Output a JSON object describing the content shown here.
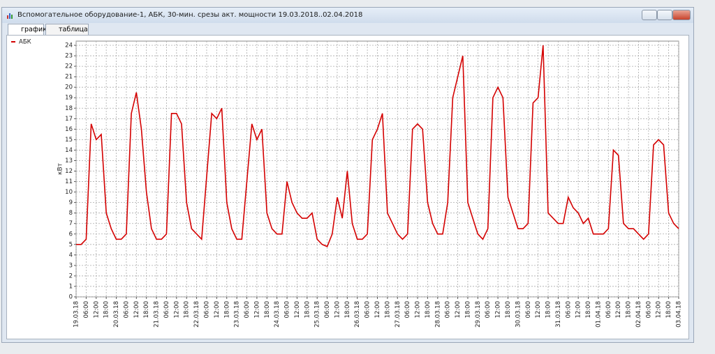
{
  "window": {
    "title": "Вспомогательное оборудование-1, АБК, 30-мин. срезы акт. мощности 19.03.2018..02.04.2018",
    "tabs": [
      "график",
      "таблица"
    ]
  },
  "chart_data": {
    "type": "line",
    "y_label": "кВт",
    "grid": true,
    "legend": "top-left",
    "xlim": [
      0,
      360
    ],
    "ylim": [
      0,
      24.4
    ],
    "yticks": [
      0,
      1,
      2,
      3,
      4,
      5,
      6,
      7,
      8,
      9,
      10,
      11,
      12,
      13,
      14,
      15,
      16,
      17,
      18,
      19,
      20,
      21,
      22,
      23,
      24
    ],
    "xticks": [
      {
        "value": 0,
        "label": "19.03.18"
      },
      {
        "value": 6,
        "label": "06:00"
      },
      {
        "value": 12,
        "label": "12:00"
      },
      {
        "value": 18,
        "label": "18:00"
      },
      {
        "value": 24,
        "label": "20.03.18"
      },
      {
        "value": 30,
        "label": "06:00"
      },
      {
        "value": 36,
        "label": "12:00"
      },
      {
        "value": 42,
        "label": "18:00"
      },
      {
        "value": 48,
        "label": "21.03.18"
      },
      {
        "value": 54,
        "label": "06:00"
      },
      {
        "value": 60,
        "label": "12:00"
      },
      {
        "value": 66,
        "label": "18:00"
      },
      {
        "value": 72,
        "label": "22.03.18"
      },
      {
        "value": 78,
        "label": "06:00"
      },
      {
        "value": 84,
        "label": "12:00"
      },
      {
        "value": 90,
        "label": "18:00"
      },
      {
        "value": 96,
        "label": "23.03.18"
      },
      {
        "value": 102,
        "label": "06:00"
      },
      {
        "value": 108,
        "label": "12:00"
      },
      {
        "value": 114,
        "label": "18:00"
      },
      {
        "value": 120,
        "label": "24.03.18"
      },
      {
        "value": 126,
        "label": "06:00"
      },
      {
        "value": 132,
        "label": "12:00"
      },
      {
        "value": 138,
        "label": "18:00"
      },
      {
        "value": 144,
        "label": "25.03.18"
      },
      {
        "value": 150,
        "label": "06:00"
      },
      {
        "value": 156,
        "label": "12:00"
      },
      {
        "value": 162,
        "label": "18:00"
      },
      {
        "value": 168,
        "label": "26.03.18"
      },
      {
        "value": 174,
        "label": "06:00"
      },
      {
        "value": 180,
        "label": "12:00"
      },
      {
        "value": 186,
        "label": "18:00"
      },
      {
        "value": 192,
        "label": "27.03.18"
      },
      {
        "value": 198,
        "label": "06:00"
      },
      {
        "value": 204,
        "label": "12:00"
      },
      {
        "value": 210,
        "label": "18:00"
      },
      {
        "value": 216,
        "label": "28.03.18"
      },
      {
        "value": 222,
        "label": "06:00"
      },
      {
        "value": 228,
        "label": "12:00"
      },
      {
        "value": 234,
        "label": "18:00"
      },
      {
        "value": 240,
        "label": "29.03.18"
      },
      {
        "value": 246,
        "label": "06:00"
      },
      {
        "value": 252,
        "label": "12:00"
      },
      {
        "value": 258,
        "label": "18:00"
      },
      {
        "value": 264,
        "label": "30.03.18"
      },
      {
        "value": 270,
        "label": "06:00"
      },
      {
        "value": 276,
        "label": "12:00"
      },
      {
        "value": 282,
        "label": "18:00"
      },
      {
        "value": 288,
        "label": "31.03.18"
      },
      {
        "value": 294,
        "label": "06:00"
      },
      {
        "value": 300,
        "label": "12:00"
      },
      {
        "value": 306,
        "label": "18:00"
      },
      {
        "value": 312,
        "label": "01.04.18"
      },
      {
        "value": 318,
        "label": "06:00"
      },
      {
        "value": 324,
        "label": "12:00"
      },
      {
        "value": 330,
        "label": "18:00"
      },
      {
        "value": 336,
        "label": "02.04.18"
      },
      {
        "value": 342,
        "label": "06:00"
      },
      {
        "value": 348,
        "label": "12:00"
      },
      {
        "value": 354,
        "label": "18:00"
      },
      {
        "value": 360,
        "label": "03.04.18"
      }
    ],
    "x": [
      0,
      3,
      6,
      9,
      12,
      15,
      18,
      21,
      24,
      27,
      30,
      33,
      36,
      39,
      42,
      45,
      48,
      51,
      54,
      57,
      60,
      63,
      66,
      69,
      72,
      75,
      78,
      81,
      84,
      87,
      90,
      93,
      96,
      99,
      102,
      105,
      108,
      111,
      114,
      117,
      120,
      123,
      126,
      129,
      132,
      135,
      138,
      141,
      144,
      147,
      150,
      153,
      156,
      159,
      162,
      165,
      168,
      171,
      174,
      177,
      180,
      183,
      186,
      189,
      192,
      195,
      198,
      201,
      204,
      207,
      210,
      213,
      216,
      219,
      222,
      225,
      228,
      231,
      234,
      237,
      240,
      243,
      246,
      249,
      252,
      255,
      258,
      261,
      264,
      267,
      270,
      273,
      276,
      279,
      282,
      285,
      288,
      291,
      294,
      297,
      300,
      303,
      306,
      309,
      312,
      315,
      318,
      321,
      324,
      327,
      330,
      333,
      336,
      339,
      342,
      345,
      348,
      351,
      354,
      357,
      360
    ],
    "series": [
      {
        "name": "АБК",
        "color": "#d40000",
        "values": [
          5,
          5,
          5.5,
          16.5,
          15,
          15.5,
          8,
          6.5,
          5.5,
          5.5,
          6,
          17.5,
          19.5,
          16,
          10,
          6.5,
          5.5,
          5.5,
          6,
          17.5,
          17.5,
          16.5,
          9,
          6.5,
          6,
          5.5,
          11.5,
          17.5,
          17,
          18,
          9,
          6.5,
          5.5,
          5.5,
          11,
          16.5,
          15,
          16,
          8,
          6.5,
          6,
          6,
          11,
          9,
          8,
          7.5,
          7.5,
          8,
          5.5,
          5,
          4.8,
          6,
          9.5,
          7.5,
          12,
          7,
          5.5,
          5.5,
          6,
          15,
          16,
          17.5,
          8,
          7,
          6,
          5.5,
          6,
          16,
          16.5,
          16,
          9,
          7,
          6,
          6,
          9,
          19,
          21,
          23,
          9,
          7.5,
          6,
          5.5,
          6.5,
          19,
          20,
          19,
          9.5,
          8,
          6.5,
          6.5,
          7,
          18.5,
          19,
          24,
          8,
          7.5,
          7,
          7,
          9.5,
          8.5,
          8,
          7,
          7.5,
          6,
          6,
          6,
          6.5,
          14,
          13.5,
          7,
          6.5,
          6.5,
          6,
          5.5,
          6,
          14.5,
          15,
          14.5,
          8,
          7,
          6.5
        ]
      }
    ]
  }
}
